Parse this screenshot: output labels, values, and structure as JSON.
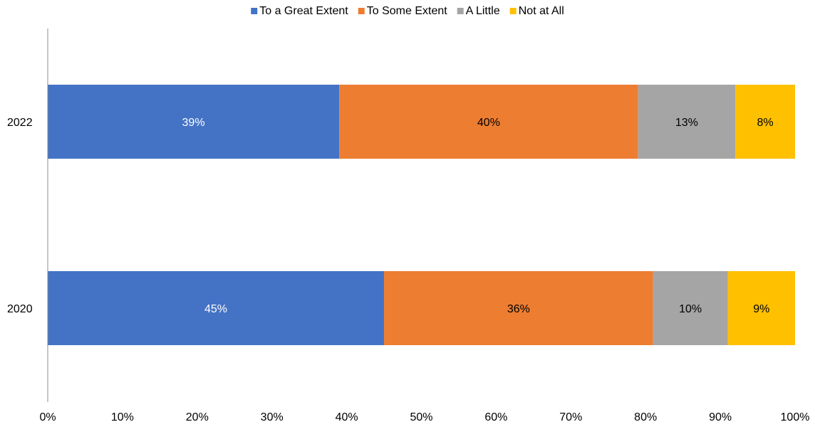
{
  "chart_data": {
    "type": "bar",
    "orientation": "horizontal",
    "stacked": "percent",
    "categories": [
      "2022",
      "2020"
    ],
    "series": [
      {
        "name": "To a Great Extent",
        "values": [
          39,
          45
        ],
        "labels": [
          "39%",
          "45%"
        ],
        "color": "#4472C4",
        "label_color": "#ffffff"
      },
      {
        "name": "To Some Extent",
        "values": [
          40,
          36
        ],
        "labels": [
          "40%",
          "36%"
        ],
        "color": "#ED7D31",
        "label_color": "#000000"
      },
      {
        "name": "A Little",
        "values": [
          13,
          10
        ],
        "labels": [
          "13%",
          "10%"
        ],
        "color": "#A5A5A5",
        "label_color": "#000000"
      },
      {
        "name": "Not at All",
        "values": [
          8,
          9
        ],
        "labels": [
          "8%",
          "9%"
        ],
        "color": "#FFC000",
        "label_color": "#000000"
      }
    ],
    "xlim": [
      0,
      100
    ],
    "x_ticks": [
      "0%",
      "10%",
      "20%",
      "30%",
      "40%",
      "50%",
      "60%",
      "70%",
      "80%",
      "90%",
      "100%"
    ],
    "legend_position": "top",
    "grid": false
  }
}
